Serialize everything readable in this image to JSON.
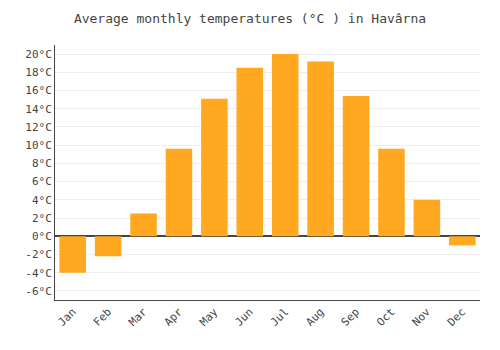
{
  "chart_data": {
    "type": "bar",
    "title": "Average monthly temperatures (°C ) in Havârna",
    "categories": [
      "Jan",
      "Feb",
      "Mar",
      "Apr",
      "May",
      "Jun",
      "Jul",
      "Aug",
      "Sep",
      "Oct",
      "Nov",
      "Dec"
    ],
    "values": [
      -4.0,
      -2.2,
      2.5,
      9.6,
      15.1,
      18.5,
      20.0,
      19.2,
      15.4,
      9.6,
      4.0,
      -1.0
    ],
    "color": "#FFA820",
    "ylim": [
      -7,
      21
    ],
    "yticks": [
      {
        "value": -6,
        "label": "-6°C"
      },
      {
        "value": -4,
        "label": "-4°C"
      },
      {
        "value": -2,
        "label": "-2°C"
      },
      {
        "value": 0,
        "label": "0°C"
      },
      {
        "value": 2,
        "label": "2°C"
      },
      {
        "value": 4,
        "label": "4°C"
      },
      {
        "value": 6,
        "label": "6°C"
      },
      {
        "value": 8,
        "label": "8°C"
      },
      {
        "value": 10,
        "label": "10°C"
      },
      {
        "value": 12,
        "label": "12°C"
      },
      {
        "value": 14,
        "label": "14°C"
      },
      {
        "value": 16,
        "label": "16°C"
      },
      {
        "value": 18,
        "label": "18°C"
      },
      {
        "value": 20,
        "label": "20°C"
      }
    ],
    "grid": true
  }
}
